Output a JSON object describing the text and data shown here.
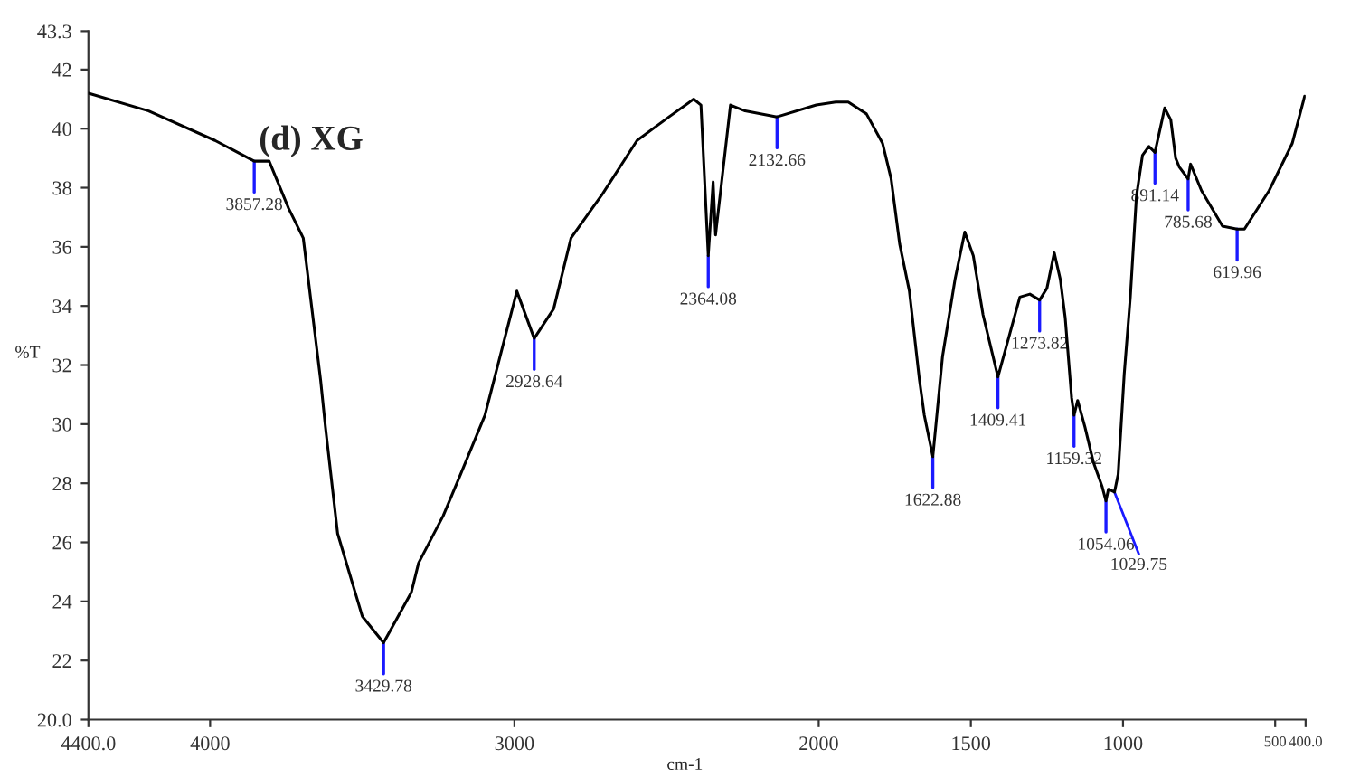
{
  "chart_data": {
    "type": "line",
    "title": "(d) XG",
    "xlabel": "cm-1",
    "ylabel": "%T",
    "x": [
      4400,
      4202,
      3984,
      3855,
      3806,
      3742,
      3694,
      3637,
      3621,
      3581,
      3500,
      3430,
      3339,
      3315,
      3234,
      3177,
      3097,
      2992,
      2935,
      2871,
      2814,
      2710,
      2597,
      2492,
      2411,
      2387,
      2363,
      2347,
      2339,
      2290,
      2242,
      2137,
      2008,
      1944,
      1903,
      1843,
      1790,
      1762,
      1734,
      1702,
      1669,
      1653,
      1625,
      1593,
      1552,
      1520,
      1492,
      1460,
      1411,
      1371,
      1339,
      1306,
      1274,
      1250,
      1226,
      1206,
      1190,
      1169,
      1161,
      1149,
      1125,
      1097,
      1069,
      1056,
      1048,
      1028,
      1016,
      996,
      976,
      956,
      936,
      915,
      895,
      863,
      843,
      827,
      815,
      786,
      778,
      742,
      673,
      625,
      601,
      520,
      444,
      403
    ],
    "series": [
      {
        "color": "#000000",
        "values": [
          41.2,
          40.6,
          39.6,
          38.9,
          38.9,
          37.3,
          36.3,
          31.5,
          29.9,
          26.3,
          23.5,
          22.6,
          24.3,
          25.3,
          26.9,
          28.3,
          30.3,
          34.5,
          32.9,
          33.9,
          36.3,
          37.8,
          39.6,
          40.4,
          41.0,
          40.8,
          35.7,
          38.2,
          36.4,
          40.8,
          40.6,
          40.4,
          40.8,
          40.9,
          40.9,
          40.5,
          39.5,
          38.3,
          36.1,
          34.5,
          31.5,
          30.3,
          28.9,
          32.3,
          34.9,
          36.5,
          35.7,
          33.7,
          31.6,
          33.1,
          34.3,
          34.4,
          34.2,
          34.6,
          35.8,
          34.9,
          33.6,
          30.9,
          30.3,
          30.8,
          29.9,
          28.7,
          27.9,
          27.4,
          27.8,
          27.7,
          28.3,
          31.7,
          34.3,
          37.7,
          39.1,
          39.4,
          39.2,
          40.7,
          40.3,
          39.0,
          38.7,
          38.3,
          38.8,
          37.9,
          36.7,
          36.6,
          36.6,
          37.9,
          39.5,
          41.1
        ]
      }
    ],
    "annotations": [
      {
        "text": "3857.28",
        "x": 3855,
        "y": 38.9
      },
      {
        "text": "3429.78",
        "x": 3430,
        "y": 22.6
      },
      {
        "text": "2928.64",
        "x": 2935,
        "y": 32.9
      },
      {
        "text": "2364.08",
        "x": 2363,
        "y": 35.7
      },
      {
        "text": "2132.66",
        "x": 2137,
        "y": 40.4
      },
      {
        "text": "1622.88",
        "x": 1625,
        "y": 28.9
      },
      {
        "text": "1409.41",
        "x": 1411,
        "y": 31.6
      },
      {
        "text": "1273.82",
        "x": 1274,
        "y": 34.2
      },
      {
        "text": "1159.32",
        "x": 1161,
        "y": 30.3
      },
      {
        "text": "1054.06",
        "x": 1056,
        "y": 27.4
      },
      {
        "text": "1029.75",
        "x": 1028,
        "y": 27.7
      },
      {
        "text": "891.14",
        "x": 895,
        "y": 39.2
      },
      {
        "text": "785.68",
        "x": 786,
        "y": 38.3
      },
      {
        "text": "619.96",
        "x": 625,
        "y": 36.6
      }
    ],
    "xlim": [
      4400,
      400
    ],
    "xticks": [
      {
        "value": 4400,
        "label": "4400.0"
      },
      4000,
      3000,
      2000,
      1500,
      1000,
      500,
      {
        "value": 400,
        "label": "400.0"
      }
    ],
    "ylim": [
      20,
      43.3
    ],
    "yticks": [
      {
        "value": 20,
        "label": "20.0"
      },
      22,
      24,
      26,
      28,
      30,
      32,
      34,
      36,
      38,
      40,
      42,
      43.3
    ],
    "grid": false,
    "legend": false,
    "marker": "none",
    "line_style": "solid"
  }
}
